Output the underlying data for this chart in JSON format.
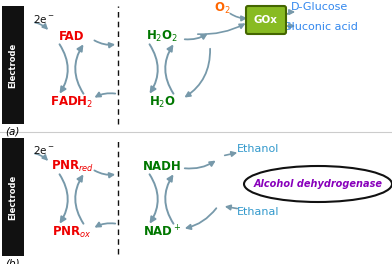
{
  "bg_color": "#ffffff",
  "electrode_color": "#111111",
  "electrode_text": "Electrode",
  "panel_a_label": "(a)",
  "panel_b_label": "(b)",
  "fad_color": "#ee0000",
  "fadh2_color": "#ee0000",
  "h2o2_color": "#007700",
  "h2o_color": "#007700",
  "o2_color": "#ff6600",
  "dglucose_color": "#3388ee",
  "gluconic_color": "#3388ee",
  "pnr_red_color": "#ee0000",
  "pnr_ox_color": "#ee0000",
  "nadh_color": "#007700",
  "nad_color": "#007700",
  "ethanol_color": "#3399cc",
  "ethanal_color": "#3399cc",
  "arrow_color": "#7799aa",
  "adh_ellipse_color": "#111111",
  "adh_text_color": "#8800bb",
  "two_e_color": "#111111",
  "gox_fill": "#88bb22",
  "gox_edge": "#446600",
  "separator_color": "#111111"
}
